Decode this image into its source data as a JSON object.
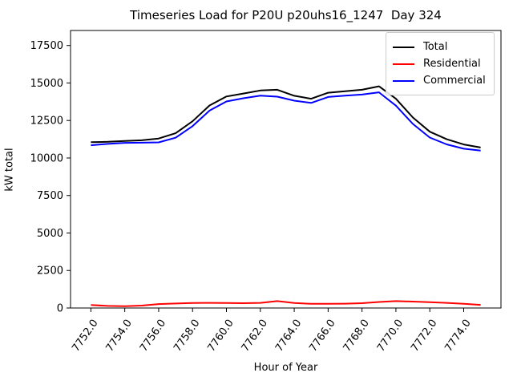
{
  "chart_data": {
    "type": "line",
    "title": "Timeseries Load for P20U p20uhs16_1247  Day 324",
    "xlabel": "Hour of Year",
    "ylabel": "kW total",
    "x": [
      7752,
      7753,
      7754,
      7755,
      7756,
      7757,
      7758,
      7759,
      7760,
      7761,
      7762,
      7763,
      7764,
      7765,
      7766,
      7767,
      7768,
      7769,
      7770,
      7771,
      7772,
      7773,
      7774,
      7775
    ],
    "series": [
      {
        "name": "Total",
        "color": "#000000",
        "values": [
          11050,
          11080,
          11130,
          11180,
          11300,
          11650,
          12450,
          13500,
          14100,
          14300,
          14500,
          14550,
          14150,
          13950,
          14350,
          14450,
          14550,
          14780,
          13950,
          12700,
          11750,
          11250,
          10900,
          10700
        ]
      },
      {
        "name": "Residential",
        "color": "#ff0000",
        "values": [
          200,
          140,
          120,
          160,
          260,
          300,
          330,
          340,
          330,
          320,
          340,
          460,
          330,
          280,
          280,
          290,
          320,
          400,
          460,
          430,
          390,
          340,
          280,
          210
        ]
      },
      {
        "name": "Commercial",
        "color": "#0000ff",
        "values": [
          10850,
          10940,
          11010,
          11020,
          11040,
          11350,
          12120,
          13160,
          13770,
          13980,
          14160,
          14090,
          13820,
          13670,
          14070,
          14160,
          14230,
          14380,
          13490,
          12270,
          11360,
          10910,
          10620,
          10490
        ]
      }
    ],
    "xticks": [
      7752,
      7754,
      7756,
      7758,
      7760,
      7762,
      7764,
      7766,
      7768,
      7770,
      7772,
      7774
    ],
    "xtick_labels": [
      "7752.0",
      "7754.0",
      "7756.0",
      "7758.0",
      "7760.0",
      "7762.0",
      "7764.0",
      "7766.0",
      "7768.0",
      "7770.0",
      "7772.0",
      "7774.0"
    ],
    "yticks": [
      0,
      2500,
      5000,
      7500,
      10000,
      12500,
      15000,
      17500
    ],
    "ytick_labels": [
      "0",
      "2500",
      "5000",
      "7500",
      "10000",
      "12500",
      "15000",
      "17500"
    ],
    "xlim": [
      7750.8,
      7776.2
    ],
    "ylim": [
      0,
      18500
    ],
    "xtick_rotation_deg": 55,
    "grid": false,
    "legend_position": "upper right",
    "line_width": 2,
    "axis_color": "#000000",
    "background_color": "#ffffff"
  }
}
